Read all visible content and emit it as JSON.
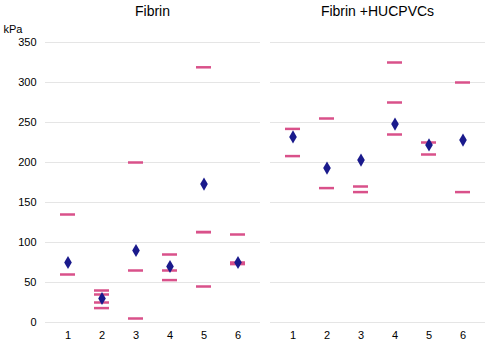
{
  "chart_data": [
    {
      "type": "strip",
      "title": "Fibrin",
      "ylabel": "kPa",
      "categories": [
        "1",
        "2",
        "3",
        "4",
        "5",
        "6"
      ],
      "series": [
        {
          "type": "tick",
          "color": "#d9518a",
          "values": [
            [
              135,
              60
            ],
            [
              25,
              18,
              35,
              40
            ],
            [
              200,
              5,
              65
            ],
            [
              85,
              65,
              53
            ],
            [
              319,
              113,
              113,
              45
            ],
            [
              75,
              110,
              73
            ]
          ]
        },
        {
          "type": "dot",
          "marker": "diamond",
          "color": "#1a1a8c",
          "values": [
            [
              75
            ],
            [
              30
            ],
            [
              90
            ],
            [
              70
            ],
            [
              173
            ],
            [
              75
            ]
          ]
        }
      ],
      "ylim": [
        0,
        350
      ],
      "yticks": [
        0,
        50,
        100,
        150,
        200,
        250,
        300,
        350
      ],
      "grid": true
    },
    {
      "type": "strip",
      "title": "Fibrin +HUCPVCs",
      "categories": [
        "1",
        "2",
        "3",
        "4",
        "5",
        "6"
      ],
      "series": [
        {
          "type": "tick",
          "color": "#d9518a",
          "values": [
            [
              242,
              208
            ],
            [
              255,
              168
            ],
            [
              170,
              163
            ],
            [
              325,
              275,
              235
            ],
            [
              225,
              210
            ],
            [
              300,
              163
            ]
          ]
        },
        {
          "type": "dot",
          "marker": "diamond",
          "color": "#1a1a8c",
          "values": [
            [
              232
            ],
            [
              193
            ],
            [
              203
            ],
            [
              248
            ],
            [
              222
            ],
            [
              228
            ]
          ]
        }
      ],
      "ylim": [
        0,
        350
      ],
      "yticks": [
        0,
        50,
        100,
        150,
        200,
        250,
        300,
        350
      ],
      "grid": true,
      "tick_labels": "x"
    }
  ]
}
